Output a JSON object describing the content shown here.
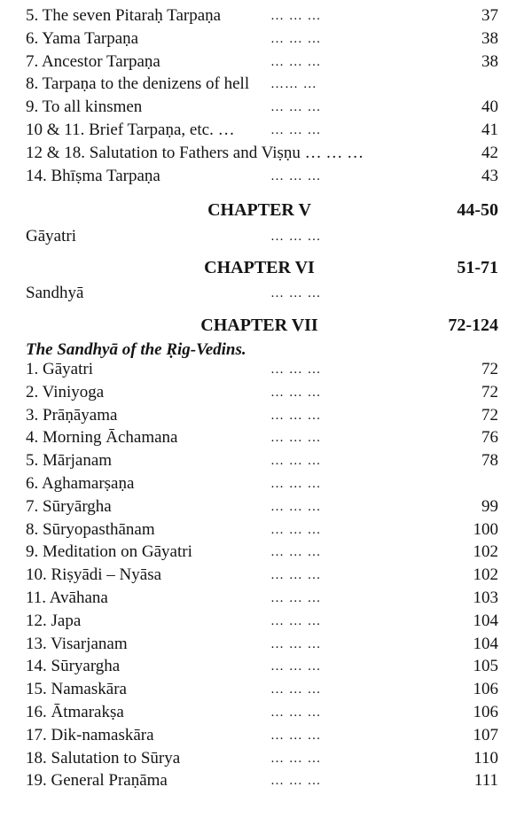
{
  "block1": [
    {
      "label": "5.  The seven Pitaraḥ Tarpaṇa",
      "leader": "… … …",
      "page": "37",
      "lead_offset": "lead-a"
    },
    {
      "label": "6.  Yama   Tarpaṇa",
      "leader": "…   … …",
      "page": "38"
    },
    {
      "label": "7.  Ancestor Tarpaṇa",
      "leader": "…   … …",
      "page": "38"
    },
    {
      "label": "8.  Tarpaṇa to the denizens of hell",
      "leader": "…… …",
      "page": ""
    },
    {
      "label": "9.  To all kinsmen",
      "leader": "…   … …",
      "page": "40"
    },
    {
      "label": "10 & 11. Brief Tarpaṇa, etc. …",
      "leader": "…   … …",
      "page": "41"
    },
    {
      "label": "12 & 18. Salutation to Fathers and Viṣṇu … … …",
      "leader": "",
      "page": "42"
    },
    {
      "label": "14. Bhīṣma Tarpaṇa",
      "leader": "…   … …",
      "page": "43"
    }
  ],
  "chapter5": {
    "title": "CHAPTER V",
    "range": "44-50",
    "entry": {
      "label": "Gāyatri",
      "leader": "…   … …",
      "page": ""
    }
  },
  "chapter6": {
    "title": "CHAPTER VI",
    "range": "51-71",
    "entry": {
      "label": "Sandhyā",
      "leader": "…   … …",
      "page": ""
    }
  },
  "chapter7": {
    "title": "CHAPTER VII",
    "range": "72-124",
    "subtitle": "The Sandhyā of the Ṛig-Vedins.",
    "items": [
      {
        "label": "1.  Gāyatri",
        "leader": "…   … …",
        "page": "72"
      },
      {
        "label": "2.  Viniyoga",
        "leader": "…   … …",
        "page": "72"
      },
      {
        "label": "3.  Prāṇāyama",
        "leader": "…   … …",
        "page": "72"
      },
      {
        "label": "4.  Morning Āchamana",
        "leader": "…   … …",
        "page": "76"
      },
      {
        "label": "5.  Mārjanam",
        "leader": "…   … …",
        "page": "78"
      },
      {
        "label": "6.  Aghamarṣaṇa",
        "leader": "…   … …",
        "page": ""
      },
      {
        "label": "7.  Sūryārgha",
        "leader": "…   … …",
        "page": "99"
      },
      {
        "label": "8.  Sūryopasthānam",
        "leader": "…   … …",
        "page": "100"
      },
      {
        "label": "9.  Meditation on Gāyatri",
        "leader": "…   … …",
        "page": "102"
      },
      {
        "label": "10. Riṣyādi – Nyāsa",
        "leader": "…   … …",
        "page": "102"
      },
      {
        "label": "11. Avāhana",
        "leader": "…   … …",
        "page": "103"
      },
      {
        "label": "12. Japa",
        "leader": "…   … …",
        "page": "104"
      },
      {
        "label": "13. Visarjanam",
        "leader": "…   … …",
        "page": "104"
      },
      {
        "label": "14. Sūryargha",
        "leader": "…   … …",
        "page": "105"
      },
      {
        "label": "15. Namaskāra",
        "leader": "…   … …",
        "page": "106"
      },
      {
        "label": "16. Ātmarakṣa",
        "leader": "…   … …",
        "page": "106"
      },
      {
        "label": "17. Dik-namaskāra",
        "leader": "…   … …",
        "page": "107"
      },
      {
        "label": "18. Salutation to Sūrya",
        "leader": "…   … …",
        "page": "110"
      },
      {
        "label": "19. General Praṇāma",
        "leader": "…   … …",
        "page": "111"
      }
    ]
  }
}
